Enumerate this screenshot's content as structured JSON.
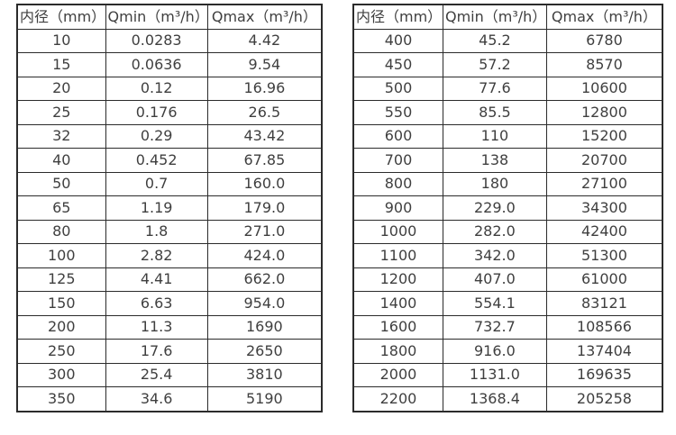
{
  "accent_colors": {
    "border": "#2b2b2b",
    "text": "#3f3f3f",
    "background": "#ffffff"
  },
  "tables": [
    {
      "name": "flow-rate-table-small-diameters",
      "headers": [
        "内径（mm）",
        "Qmin（m³/h）",
        "Qmax（m³/h）"
      ],
      "rows": [
        [
          "10",
          "0.0283",
          "4.42"
        ],
        [
          "15",
          "0.0636",
          "9.54"
        ],
        [
          "20",
          "0.12",
          "16.96"
        ],
        [
          "25",
          "0.176",
          "26.5"
        ],
        [
          "32",
          "0.29",
          "43.42"
        ],
        [
          "40",
          "0.452",
          "67.85"
        ],
        [
          "50",
          "0.7",
          "160.0"
        ],
        [
          "65",
          "1.19",
          "179.0"
        ],
        [
          "80",
          "1.8",
          "271.0"
        ],
        [
          "100",
          "2.82",
          "424.0"
        ],
        [
          "125",
          "4.41",
          "662.0"
        ],
        [
          "150",
          "6.63",
          "954.0"
        ],
        [
          "200",
          "11.3",
          "1690"
        ],
        [
          "250",
          "17.6",
          "2650"
        ],
        [
          "300",
          "25.4",
          "3810"
        ],
        [
          "350",
          "34.6",
          "5190"
        ]
      ]
    },
    {
      "name": "flow-rate-table-large-diameters",
      "headers": [
        "内径（mm）",
        "Qmin（m³/h）",
        "Qmax（m³/h）"
      ],
      "rows": [
        [
          "400",
          "45.2",
          "6780"
        ],
        [
          "450",
          "57.2",
          "8570"
        ],
        [
          "500",
          "77.6",
          "10600"
        ],
        [
          "550",
          "85.5",
          "12800"
        ],
        [
          "600",
          "110",
          "15200"
        ],
        [
          "700",
          "138",
          "20700"
        ],
        [
          "800",
          "180",
          "27100"
        ],
        [
          "900",
          "229.0",
          "34300"
        ],
        [
          "1000",
          "282.0",
          "42400"
        ],
        [
          "1100",
          "342.0",
          "51300"
        ],
        [
          "1200",
          "407.0",
          "61000"
        ],
        [
          "1400",
          "554.1",
          "83121"
        ],
        [
          "1600",
          "732.7",
          "108566"
        ],
        [
          "1800",
          "916.0",
          "137404"
        ],
        [
          "2000",
          "1131.0",
          "169635"
        ],
        [
          "2200",
          "1368.4",
          "205258"
        ]
      ]
    }
  ],
  "chart_data": {
    "type": "table",
    "title": "",
    "tables": [
      {
        "columns": [
          "内径（mm）",
          "Qmin（m³/h）",
          "Qmax（m³/h）"
        ],
        "rows": [
          [
            10,
            0.0283,
            4.42
          ],
          [
            15,
            0.0636,
            9.54
          ],
          [
            20,
            0.12,
            16.96
          ],
          [
            25,
            0.176,
            26.5
          ],
          [
            32,
            0.29,
            43.42
          ],
          [
            40,
            0.452,
            67.85
          ],
          [
            50,
            0.7,
            160.0
          ],
          [
            65,
            1.19,
            179.0
          ],
          [
            80,
            1.8,
            271.0
          ],
          [
            100,
            2.82,
            424.0
          ],
          [
            125,
            4.41,
            662.0
          ],
          [
            150,
            6.63,
            954.0
          ],
          [
            200,
            11.3,
            1690
          ],
          [
            250,
            17.6,
            2650
          ],
          [
            300,
            25.4,
            3810
          ],
          [
            350,
            34.6,
            5190
          ]
        ]
      },
      {
        "columns": [
          "内径（mm）",
          "Qmin（m³/h）",
          "Qmax（m³/h）"
        ],
        "rows": [
          [
            400,
            45.2,
            6780
          ],
          [
            450,
            57.2,
            8570
          ],
          [
            500,
            77.6,
            10600
          ],
          [
            550,
            85.5,
            12800
          ],
          [
            600,
            110,
            15200
          ],
          [
            700,
            138,
            20700
          ],
          [
            800,
            180,
            27100
          ],
          [
            900,
            229.0,
            34300
          ],
          [
            1000,
            282.0,
            42400
          ],
          [
            1100,
            342.0,
            51300
          ],
          [
            1200,
            407.0,
            61000
          ],
          [
            1400,
            554.1,
            83121
          ],
          [
            1600,
            732.7,
            108566
          ],
          [
            1800,
            916.0,
            137404
          ],
          [
            2000,
            1131.0,
            169635
          ],
          [
            2200,
            1368.4,
            205258
          ]
        ]
      }
    ]
  }
}
